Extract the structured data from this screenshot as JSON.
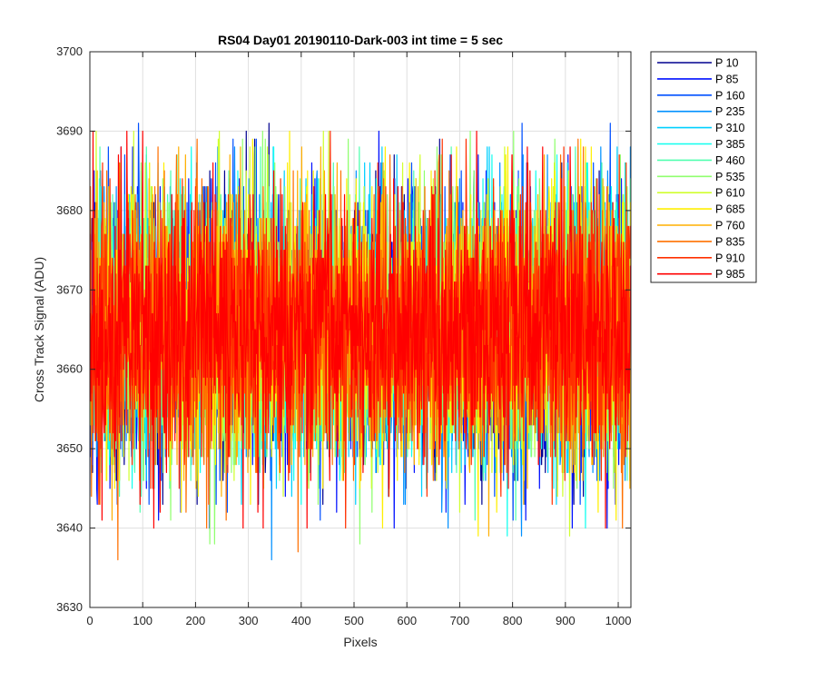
{
  "chart_data": {
    "type": "line",
    "title": "RS04 Day01 20190110-Dark-003 int time = 5 sec",
    "xlabel": "Pixels",
    "ylabel": "Cross Track Signal (ADU)",
    "xlim": [
      0,
      1024
    ],
    "ylim": [
      3630,
      3700
    ],
    "xticks": [
      0,
      100,
      200,
      300,
      400,
      500,
      600,
      700,
      800,
      900,
      1000
    ],
    "yticks": [
      3630,
      3640,
      3650,
      3660,
      3670,
      3680,
      3690,
      3700
    ],
    "grid": true,
    "legend_position": "outside-top-right",
    "series": [
      {
        "name": "P 10",
        "color": "#00008F",
        "mean": 3665,
        "min": 3643,
        "max": 3692
      },
      {
        "name": "P 85",
        "color": "#0010FF",
        "mean": 3665,
        "min": 3640,
        "max": 3692
      },
      {
        "name": "P 160",
        "color": "#0050FF",
        "mean": 3665,
        "min": 3641,
        "max": 3691
      },
      {
        "name": "P 235",
        "color": "#0090FF",
        "mean": 3665,
        "min": 3635,
        "max": 3688
      },
      {
        "name": "P 310",
        "color": "#00D0FF",
        "mean": 3665,
        "min": 3643,
        "max": 3688
      },
      {
        "name": "P 385",
        "color": "#10FFEF",
        "mean": 3665,
        "min": 3638,
        "max": 3688
      },
      {
        "name": "P 460",
        "color": "#50FFAF",
        "mean": 3665,
        "min": 3641,
        "max": 3688
      },
      {
        "name": "P 535",
        "color": "#90FF6F",
        "mean": 3665,
        "min": 3638,
        "max": 3690
      },
      {
        "name": "P 610",
        "color": "#D0FF2F",
        "mean": 3665,
        "min": 3638,
        "max": 3690
      },
      {
        "name": "P 685",
        "color": "#FFEF00",
        "mean": 3665,
        "min": 3637,
        "max": 3690
      },
      {
        "name": "P 760",
        "color": "#FFAF00",
        "mean": 3665,
        "min": 3634,
        "max": 3689
      },
      {
        "name": "P 835",
        "color": "#FF7000",
        "mean": 3665,
        "min": 3636,
        "max": 3689
      },
      {
        "name": "P 910",
        "color": "#FF3000",
        "mean": 3665,
        "min": 3640,
        "max": 3690
      },
      {
        "name": "P 985",
        "color": "#FF0000",
        "mean": 3665,
        "min": 3640,
        "max": 3690
      }
    ]
  }
}
